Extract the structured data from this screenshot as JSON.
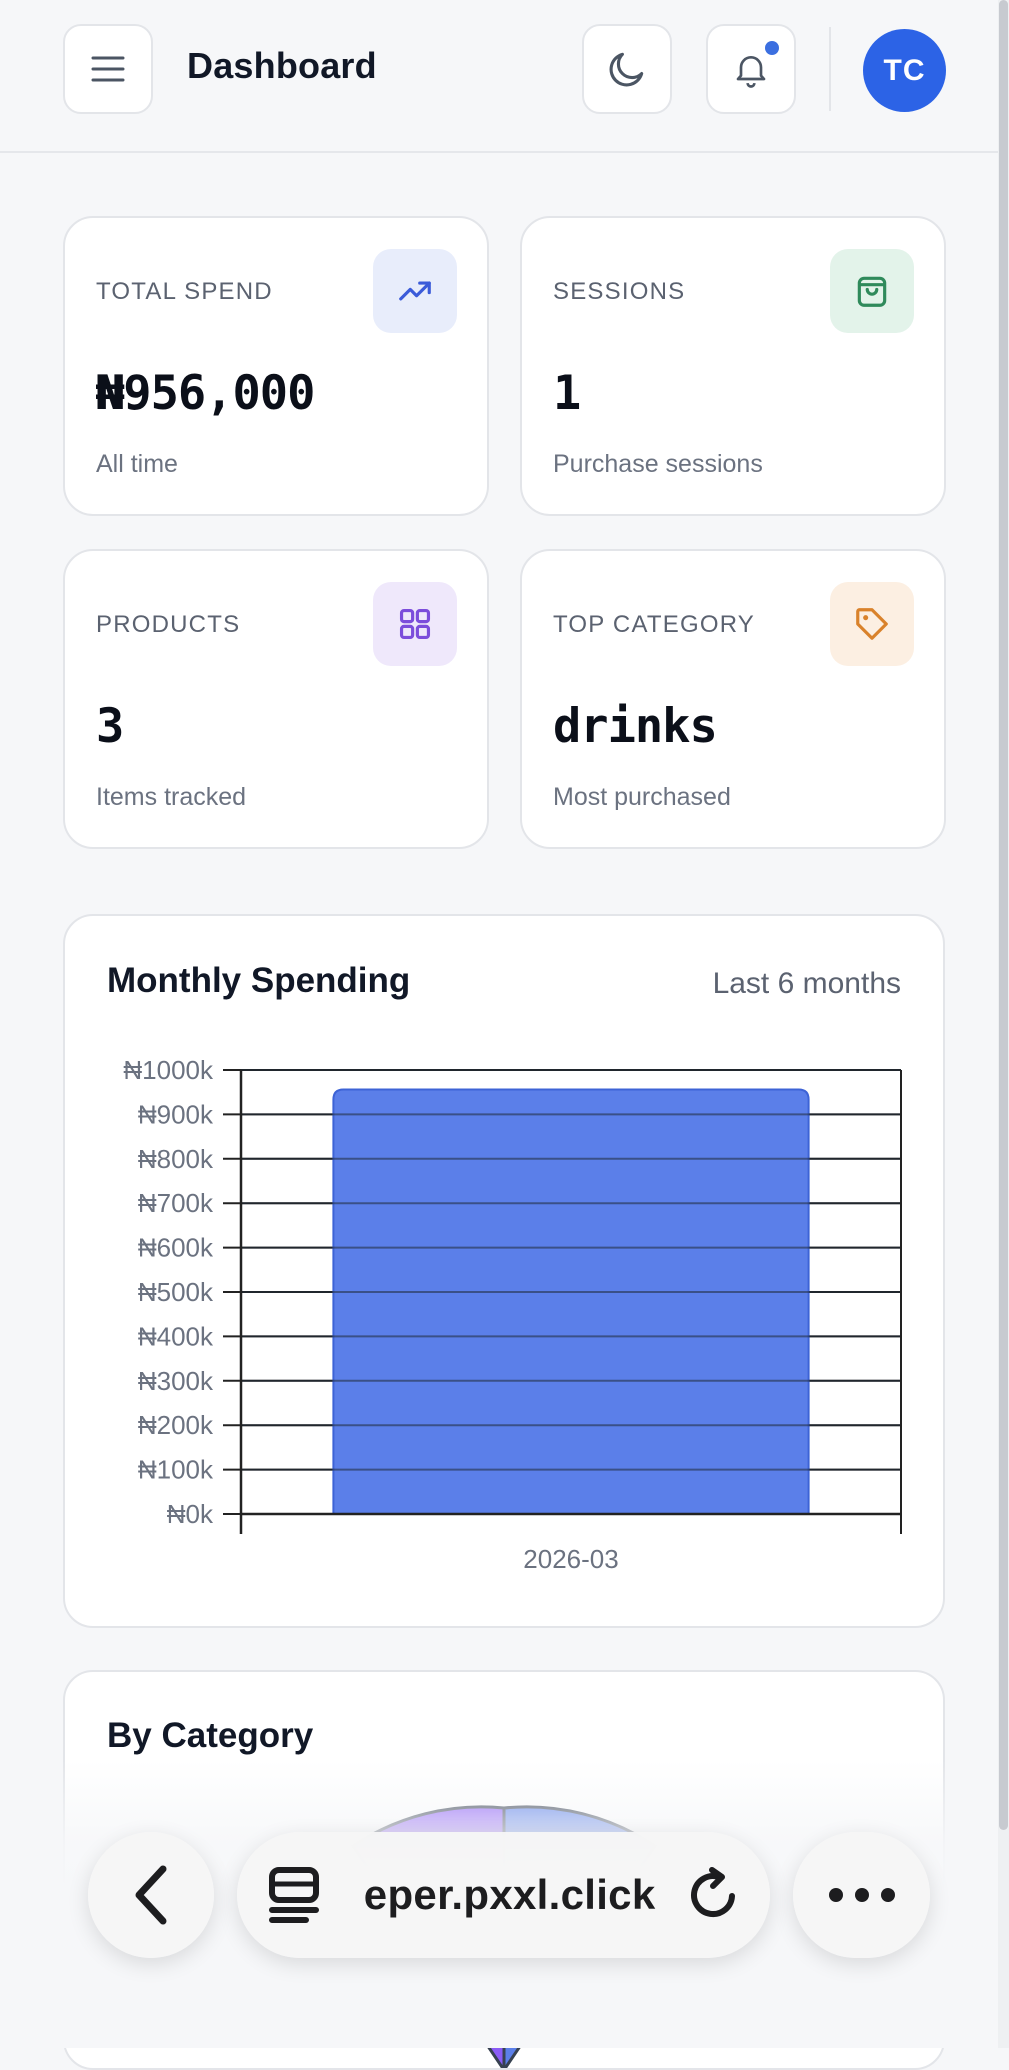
{
  "header": {
    "title": "Dashboard",
    "avatar_initials": "TC",
    "buttons": {
      "menu_icon": "menu-icon",
      "theme_icon": "moon-icon",
      "notifications_icon": "bell-icon"
    },
    "has_unread_notifications": true
  },
  "stats": [
    {
      "label": "TOTAL SPEND",
      "value": "₦956,000",
      "sub": "All time",
      "icon": "trending-up-icon",
      "icon_bg": "#e8edfb",
      "icon_color": "#3b5bd9"
    },
    {
      "label": "SESSIONS",
      "value": "1",
      "sub": "Purchase sessions",
      "icon": "shopping-bag-icon",
      "icon_bg": "#e3f3ea",
      "icon_color": "#2f8a5b"
    },
    {
      "label": "PRODUCTS",
      "value": "3",
      "sub": "Items tracked",
      "icon": "grid-icon",
      "icon_bg": "#efe8fb",
      "icon_color": "#7c4ddb"
    },
    {
      "label": "TOP CATEGORY",
      "value": "drinks",
      "sub": "Most purchased",
      "icon": "tag-icon",
      "icon_bg": "#fcefe2",
      "icon_color": "#d9822b"
    }
  ],
  "monthly": {
    "title": "Monthly Spending",
    "period": "Last 6 months"
  },
  "category": {
    "title": "By Category"
  },
  "chart_data": {
    "type": "bar",
    "title": "Monthly Spending",
    "categories": [
      "2026-03"
    ],
    "values": [
      956000
    ],
    "ylim": [
      0,
      1000000
    ],
    "yticks": [
      "₦0k",
      "₦100k",
      "₦200k",
      "₦300k",
      "₦400k",
      "₦500k",
      "₦600k",
      "₦700k",
      "₦800k",
      "₦900k",
      "₦1000k"
    ],
    "grid": true,
    "bar_color": "#5b7fe9",
    "bar_border": "#3d63d6"
  },
  "browser": {
    "url": "eper.pxxl.click",
    "back_icon": "back-arrow-icon",
    "tabs_icon": "tabs-icon",
    "reload_icon": "reload-icon",
    "more_icon": "more-icon"
  }
}
